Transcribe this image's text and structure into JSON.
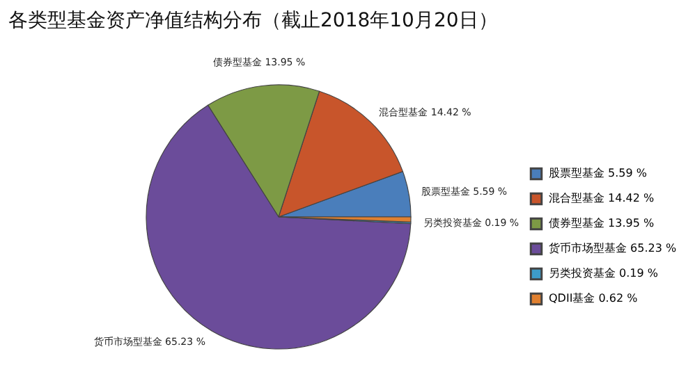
{
  "chart_data": {
    "type": "pie",
    "title": "各类型基金资产净值结构分布（截止2018年10月20日）",
    "categories": [
      "股票型基金 5.59 %",
      "混合型基金 14.42 %",
      "债券型基金 13.95 %",
      "货币市场型基金 65.23 %",
      "另类投资基金 0.19 %",
      "QDII基金 0.62 %"
    ],
    "values": [
      5.59,
      14.42,
      13.95,
      65.23,
      0.19,
      0.62
    ],
    "colors": [
      "#4a7ebb",
      "#c8552b",
      "#7d9a45",
      "#6b4c9a",
      "#3d9cc9",
      "#e08030"
    ],
    "value_labels": [
      "股票型基金 5.59 %",
      "混合型基金 14.42 %",
      "债券型基金 13.95 %",
      "货币市场型基金 65.23 %",
      "另类投资基金 0.19 %",
      null
    ],
    "legend": "right"
  }
}
